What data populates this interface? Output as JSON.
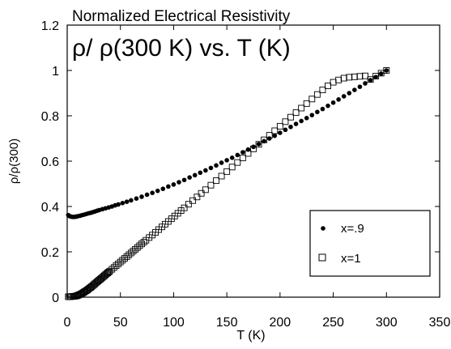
{
  "chart_data": {
    "type": "scatter",
    "title": "Normalized Electrical Resistivity",
    "subtitle": "ρ/ ρ(300 K) vs. T (K)",
    "xlabel": "T (K)",
    "ylabel": "ρ/ρ(300)",
    "xlim": [
      0,
      350
    ],
    "ylim": [
      0,
      1.2
    ],
    "x_ticks": [
      "0",
      "50",
      "100",
      "150",
      "200",
      "250",
      "300",
      "350"
    ],
    "y_ticks": [
      "0",
      "0.2",
      "0.4",
      "0.6",
      "0.8",
      "1",
      "1.2"
    ],
    "grid": false,
    "legend_position": "lower-right",
    "series": [
      {
        "name": "x=.9",
        "marker": "filled-circle",
        "color": "#000000",
        "points": [
          [
            1,
            0.362
          ],
          [
            2,
            0.358
          ],
          [
            3,
            0.356
          ],
          [
            4,
            0.355
          ],
          [
            5,
            0.354
          ],
          [
            6,
            0.354
          ],
          [
            7,
            0.354
          ],
          [
            8,
            0.355
          ],
          [
            9,
            0.356
          ],
          [
            10,
            0.357
          ],
          [
            12,
            0.359
          ],
          [
            14,
            0.362
          ],
          [
            16,
            0.364
          ],
          [
            18,
            0.367
          ],
          [
            20,
            0.37
          ],
          [
            22,
            0.372
          ],
          [
            24,
            0.375
          ],
          [
            26,
            0.378
          ],
          [
            28,
            0.381
          ],
          [
            30,
            0.384
          ],
          [
            33,
            0.388
          ],
          [
            36,
            0.392
          ],
          [
            39,
            0.396
          ],
          [
            42,
            0.4
          ],
          [
            45,
            0.405
          ],
          [
            48,
            0.409
          ],
          [
            52,
            0.415
          ],
          [
            56,
            0.421
          ],
          [
            60,
            0.427
          ],
          [
            65,
            0.435
          ],
          [
            70,
            0.443
          ],
          [
            75,
            0.452
          ],
          [
            80,
            0.46
          ],
          [
            85,
            0.469
          ],
          [
            90,
            0.478
          ],
          [
            95,
            0.488
          ],
          [
            100,
            0.497
          ],
          [
            105,
            0.507
          ],
          [
            110,
            0.517
          ],
          [
            115,
            0.528
          ],
          [
            120,
            0.538
          ],
          [
            125,
            0.549
          ],
          [
            130,
            0.559
          ],
          [
            135,
            0.57
          ],
          [
            140,
            0.581
          ],
          [
            145,
            0.593
          ],
          [
            150,
            0.604
          ],
          [
            155,
            0.615
          ],
          [
            160,
            0.627
          ],
          [
            165,
            0.639
          ],
          [
            170,
            0.651
          ],
          [
            175,
            0.663
          ],
          [
            180,
            0.675
          ],
          [
            185,
            0.688
          ],
          [
            190,
            0.7
          ],
          [
            195,
            0.712
          ],
          [
            200,
            0.725
          ],
          [
            205,
            0.738
          ],
          [
            210,
            0.751
          ],
          [
            215,
            0.764
          ],
          [
            220,
            0.777
          ],
          [
            225,
            0.79
          ],
          [
            230,
            0.803
          ],
          [
            235,
            0.817
          ],
          [
            240,
            0.83
          ],
          [
            245,
            0.844
          ],
          [
            250,
            0.858
          ],
          [
            255,
            0.872
          ],
          [
            260,
            0.886
          ],
          [
            265,
            0.9
          ],
          [
            270,
            0.914
          ],
          [
            275,
            0.928
          ],
          [
            280,
            0.943
          ],
          [
            285,
            0.957
          ],
          [
            290,
            0.971
          ],
          [
            295,
            0.986
          ],
          [
            300,
            1.0
          ]
        ]
      },
      {
        "name": "x=1",
        "marker": "open-square",
        "color": "#000000",
        "points": [
          [
            1,
            0.002
          ],
          [
            2,
            0.002
          ],
          [
            3,
            0.002
          ],
          [
            4,
            0.003
          ],
          [
            5,
            0.003
          ],
          [
            6,
            0.004
          ],
          [
            7,
            0.004
          ],
          [
            8,
            0.005
          ],
          [
            9,
            0.006
          ],
          [
            10,
            0.008
          ],
          [
            11,
            0.01
          ],
          [
            12,
            0.012
          ],
          [
            13,
            0.014
          ],
          [
            14,
            0.017
          ],
          [
            15,
            0.02
          ],
          [
            16,
            0.023
          ],
          [
            17,
            0.026
          ],
          [
            18,
            0.029
          ],
          [
            19,
            0.032
          ],
          [
            20,
            0.036
          ],
          [
            21,
            0.04
          ],
          [
            22,
            0.043
          ],
          [
            23,
            0.047
          ],
          [
            24,
            0.051
          ],
          [
            25,
            0.055
          ],
          [
            26,
            0.059
          ],
          [
            27,
            0.063
          ],
          [
            28,
            0.067
          ],
          [
            29,
            0.071
          ],
          [
            30,
            0.075
          ],
          [
            31,
            0.079
          ],
          [
            32,
            0.083
          ],
          [
            33,
            0.087
          ],
          [
            34,
            0.091
          ],
          [
            35,
            0.095
          ],
          [
            36,
            0.099
          ],
          [
            37,
            0.103
          ],
          [
            38,
            0.107
          ],
          [
            39,
            0.111
          ],
          [
            40,
            0.115
          ],
          [
            42,
            0.123
          ],
          [
            44,
            0.131
          ],
          [
            46,
            0.139
          ],
          [
            48,
            0.147
          ],
          [
            50,
            0.155
          ],
          [
            52,
            0.163
          ],
          [
            54,
            0.171
          ],
          [
            56,
            0.179
          ],
          [
            58,
            0.187
          ],
          [
            60,
            0.195
          ],
          [
            62,
            0.203
          ],
          [
            64,
            0.211
          ],
          [
            66,
            0.219
          ],
          [
            68,
            0.227
          ],
          [
            70,
            0.235
          ],
          [
            72,
            0.243
          ],
          [
            74,
            0.251
          ],
          [
            77,
            0.263
          ],
          [
            80,
            0.274
          ],
          [
            83,
            0.286
          ],
          [
            86,
            0.298
          ],
          [
            89,
            0.31
          ],
          [
            92,
            0.322
          ],
          [
            95,
            0.334
          ],
          [
            98,
            0.346
          ],
          [
            101,
            0.358
          ],
          [
            104,
            0.37
          ],
          [
            107,
            0.382
          ],
          [
            110,
            0.394
          ],
          [
            114,
            0.41
          ],
          [
            118,
            0.426
          ],
          [
            122,
            0.442
          ],
          [
            126,
            0.458
          ],
          [
            130,
            0.474
          ],
          [
            135,
            0.494
          ],
          [
            140,
            0.514
          ],
          [
            145,
            0.534
          ],
          [
            150,
            0.554
          ],
          [
            155,
            0.574
          ],
          [
            160,
            0.594
          ],
          [
            165,
            0.614
          ],
          [
            170,
            0.634
          ],
          [
            175,
            0.654
          ],
          [
            180,
            0.674
          ],
          [
            185,
            0.694
          ],
          [
            190,
            0.714
          ],
          [
            195,
            0.734
          ],
          [
            200,
            0.754
          ],
          [
            205,
            0.774
          ],
          [
            210,
            0.794
          ],
          [
            215,
            0.814
          ],
          [
            220,
            0.834
          ],
          [
            225,
            0.854
          ],
          [
            230,
            0.874
          ],
          [
            235,
            0.894
          ],
          [
            240,
            0.914
          ],
          [
            245,
            0.932
          ],
          [
            250,
            0.948
          ],
          [
            255,
            0.958
          ],
          [
            260,
            0.966
          ],
          [
            265,
            0.97
          ],
          [
            270,
            0.972
          ],
          [
            275,
            0.974
          ],
          [
            280,
            0.976
          ],
          [
            285,
            0.96
          ],
          [
            290,
            0.975
          ],
          [
            295,
            0.988
          ],
          [
            300,
            1.0
          ]
        ]
      }
    ]
  }
}
